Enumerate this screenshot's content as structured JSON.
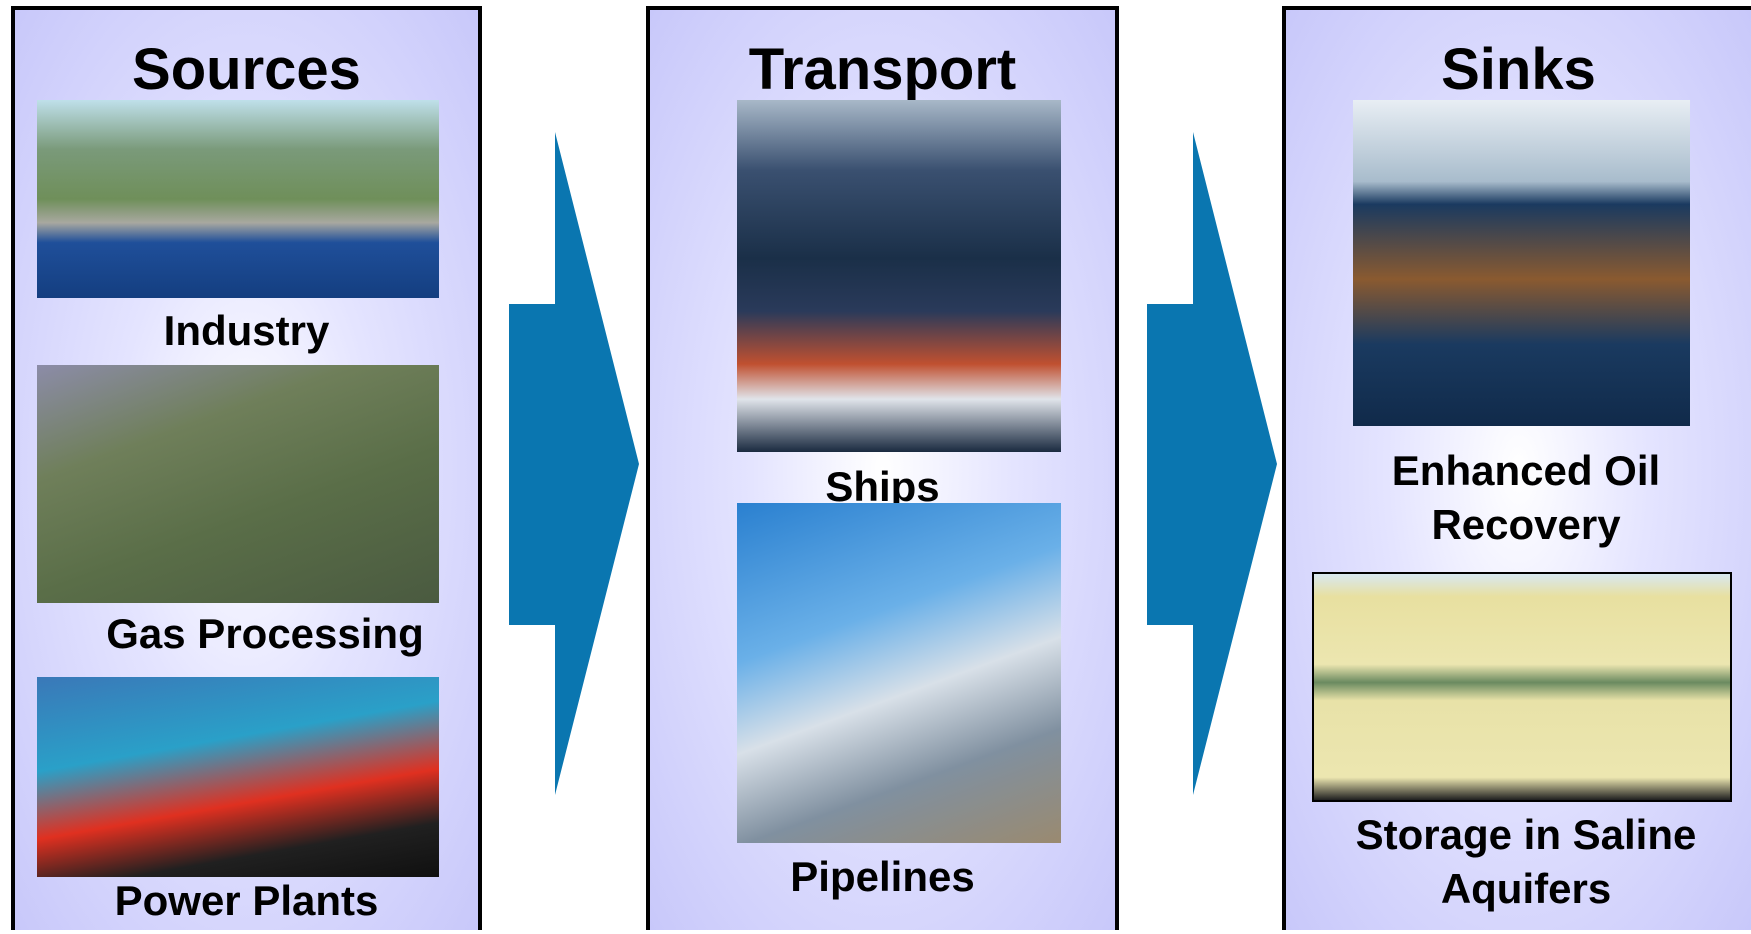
{
  "panels": [
    {
      "title": "Sources",
      "items": [
        {
          "label": "Industry"
        },
        {
          "label": "Gas Processing"
        },
        {
          "label": "Power Plants"
        }
      ]
    },
    {
      "title": "Transport",
      "items": [
        {
          "label": "Ships"
        },
        {
          "label": "Pipelines"
        }
      ]
    },
    {
      "title": "Sinks",
      "items": [
        {
          "label": "Enhanced Oil Recovery"
        },
        {
          "label": "Storage in Saline Aquifers"
        }
      ]
    }
  ]
}
